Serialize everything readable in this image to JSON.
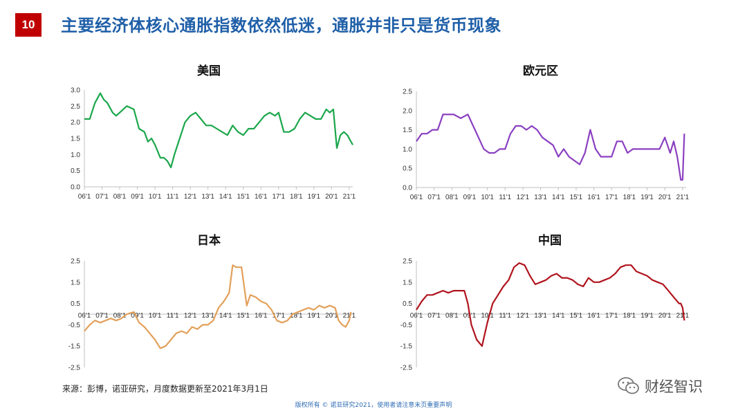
{
  "page": {
    "badge": "10",
    "title": "主要经济体核心通胀指数依然低迷，通胀并非只是货币现象",
    "source": "来源：彭博，诺亚研究，月度数据更新至2021年3月1日",
    "copyright": "版权所有 © 诺亚研究2021，使用者请注意末页重要声明",
    "watermark": "财经智识"
  },
  "colors": {
    "us": "#1aa64a",
    "eu": "#8a3fc0",
    "jp": "#e3a05a",
    "cn": "#b0131d",
    "badge": "#c00000",
    "title": "#1f5fa8"
  },
  "chart_data": [
    {
      "type": "line",
      "title": "美国",
      "ylim": [
        0,
        3.0
      ],
      "yticks": [
        "0.0",
        "0.5",
        "1.0",
        "1.5",
        "2.0",
        "2.5",
        "3.0"
      ],
      "xticks": [
        "06'1",
        "07'1",
        "08'1",
        "09'1",
        "10'1",
        "11'1",
        "12'1",
        "13'1",
        "14'1",
        "15'1",
        "16'1",
        "17'1",
        "18'1",
        "19'1",
        "20'1",
        "21'1"
      ],
      "x_start": 2006.0,
      "x_end": 2021.2,
      "series": [
        {
          "x": [
            2006.0,
            2006.3,
            2006.6,
            2006.9,
            2007.1,
            2007.3,
            2007.6,
            2007.8,
            2008.0,
            2008.4,
            2008.8,
            2009.1,
            2009.4,
            2009.6,
            2009.8,
            2010.0,
            2010.3,
            2010.5,
            2010.7,
            2010.9,
            2011.1,
            2011.4,
            2011.7,
            2012.0,
            2012.3,
            2012.6,
            2012.9,
            2013.2,
            2013.5,
            2013.8,
            2014.1,
            2014.4,
            2014.7,
            2015.0,
            2015.3,
            2015.6,
            2015.9,
            2016.2,
            2016.5,
            2016.8,
            2017.0,
            2017.3,
            2017.6,
            2017.9,
            2018.2,
            2018.5,
            2018.8,
            2019.1,
            2019.4,
            2019.7,
            2019.9,
            2020.1,
            2020.3,
            2020.5,
            2020.7,
            2020.9,
            2021.1,
            2021.2
          ],
          "y": [
            2.1,
            2.1,
            2.6,
            2.9,
            2.7,
            2.6,
            2.3,
            2.2,
            2.3,
            2.5,
            2.4,
            1.8,
            1.7,
            1.4,
            1.5,
            1.3,
            0.9,
            0.9,
            0.8,
            0.6,
            1.0,
            1.5,
            2.0,
            2.2,
            2.3,
            2.1,
            1.9,
            1.9,
            1.8,
            1.7,
            1.6,
            1.9,
            1.7,
            1.6,
            1.8,
            1.8,
            2.0,
            2.2,
            2.3,
            2.2,
            2.3,
            1.7,
            1.7,
            1.8,
            2.1,
            2.3,
            2.2,
            2.1,
            2.1,
            2.4,
            2.3,
            2.4,
            1.2,
            1.6,
            1.7,
            1.6,
            1.4,
            1.3
          ]
        }
      ]
    },
    {
      "type": "line",
      "title": "欧元区",
      "ylim": [
        0,
        2.5
      ],
      "yticks": [
        "0.0",
        "0.5",
        "1.0",
        "1.5",
        "2.0",
        "2.5"
      ],
      "xticks": [
        "06'1",
        "07'1",
        "08'1",
        "09'1",
        "10'1",
        "11'1",
        "12'1",
        "13'1",
        "14'1",
        "15'1",
        "16'1",
        "17'1",
        "18'1",
        "19'1",
        "20'1",
        "21'1"
      ],
      "x_start": 2006.0,
      "x_end": 2021.2,
      "series": [
        {
          "x": [
            2006.0,
            2006.3,
            2006.6,
            2006.9,
            2007.2,
            2007.5,
            2007.8,
            2008.1,
            2008.5,
            2008.9,
            2009.2,
            2009.5,
            2009.8,
            2010.1,
            2010.4,
            2010.7,
            2011.0,
            2011.3,
            2011.6,
            2011.9,
            2012.2,
            2012.5,
            2012.8,
            2013.1,
            2013.4,
            2013.7,
            2014.0,
            2014.3,
            2014.6,
            2014.9,
            2015.2,
            2015.5,
            2015.8,
            2016.1,
            2016.4,
            2016.7,
            2017.0,
            2017.3,
            2017.6,
            2017.9,
            2018.2,
            2018.5,
            2018.8,
            2019.1,
            2019.4,
            2019.7,
            2020.0,
            2020.3,
            2020.5,
            2020.7,
            2020.9,
            2021.0,
            2021.1
          ],
          "y": [
            1.2,
            1.4,
            1.4,
            1.5,
            1.5,
            1.9,
            1.9,
            1.9,
            1.8,
            1.9,
            1.6,
            1.3,
            1.0,
            0.9,
            0.9,
            1.0,
            1.0,
            1.4,
            1.6,
            1.6,
            1.5,
            1.6,
            1.5,
            1.3,
            1.2,
            1.1,
            0.8,
            1.0,
            0.8,
            0.7,
            0.6,
            0.9,
            1.5,
            1.0,
            0.8,
            0.8,
            0.8,
            1.2,
            1.2,
            0.9,
            1.0,
            1.0,
            1.0,
            1.0,
            1.0,
            1.0,
            1.3,
            0.9,
            1.2,
            0.8,
            0.2,
            0.2,
            1.4
          ]
        }
      ]
    },
    {
      "type": "line",
      "title": "日本",
      "ylim": [
        -2.5,
        2.5
      ],
      "yticks": [
        "-2.5",
        "-1.5",
        "-0.5",
        "0.5",
        "1.5",
        "2.5"
      ],
      "xticks": [
        "06'1",
        "07'1",
        "08'1",
        "09'1",
        "10'1",
        "11'1",
        "12'1",
        "13'1",
        "14'1",
        "15'1",
        "16'1",
        "17'1",
        "18'1",
        "19'1",
        "20'1",
        "21'1"
      ],
      "x_start": 2006.0,
      "x_end": 2021.2,
      "series": [
        {
          "x": [
            2006.0,
            2006.3,
            2006.6,
            2006.9,
            2007.2,
            2007.5,
            2007.8,
            2008.1,
            2008.4,
            2008.8,
            2009.1,
            2009.4,
            2009.7,
            2010.0,
            2010.3,
            2010.6,
            2010.9,
            2011.2,
            2011.5,
            2011.8,
            2012.1,
            2012.4,
            2012.7,
            2013.0,
            2013.3,
            2013.6,
            2013.9,
            2014.2,
            2014.4,
            2014.6,
            2014.9,
            2015.2,
            2015.4,
            2015.7,
            2016.0,
            2016.3,
            2016.6,
            2016.9,
            2017.2,
            2017.5,
            2017.8,
            2018.1,
            2018.4,
            2018.7,
            2019.0,
            2019.3,
            2019.6,
            2019.9,
            2020.2,
            2020.4,
            2020.6,
            2020.8,
            2021.0,
            2021.1
          ],
          "y": [
            -0.8,
            -0.5,
            -0.3,
            -0.4,
            -0.3,
            -0.2,
            -0.3,
            -0.2,
            0.0,
            0.1,
            -0.4,
            -0.6,
            -0.9,
            -1.2,
            -1.6,
            -1.5,
            -1.2,
            -0.9,
            -0.8,
            -0.9,
            -0.6,
            -0.7,
            -0.5,
            -0.5,
            -0.3,
            0.3,
            0.6,
            1.0,
            2.3,
            2.2,
            2.2,
            0.4,
            0.9,
            0.8,
            0.6,
            0.5,
            0.2,
            -0.3,
            -0.4,
            -0.3,
            0.0,
            0.1,
            0.2,
            0.3,
            0.2,
            0.4,
            0.3,
            0.4,
            0.3,
            -0.3,
            -0.5,
            -0.6,
            -0.3,
            0.1
          ]
        }
      ]
    },
    {
      "type": "line",
      "title": "中国",
      "ylim": [
        -2.5,
        2.5
      ],
      "yticks": [
        "-2.5",
        "-1.5",
        "-0.5",
        "0.5",
        "1.5",
        "2.5"
      ],
      "xticks": [
        "06'1",
        "07'1",
        "08'1",
        "09'1",
        "10'1",
        "11'1",
        "12'1",
        "13'1",
        "14'1",
        "15'1",
        "16'1",
        "17'1",
        "18'1",
        "19'1",
        "20'1",
        "21'1"
      ],
      "x_start": 2006.0,
      "x_end": 2021.2,
      "series": [
        {
          "x": [
            2006.0,
            2006.3,
            2006.6,
            2006.9,
            2007.2,
            2007.5,
            2007.8,
            2008.1,
            2008.4,
            2008.7,
            2008.9,
            2009.1,
            2009.4,
            2009.7,
            2010.0,
            2010.3,
            2010.6,
            2010.9,
            2011.2,
            2011.5,
            2011.8,
            2012.1,
            2012.4,
            2012.7,
            2013.0,
            2013.3,
            2013.6,
            2013.9,
            2014.2,
            2014.5,
            2014.8,
            2015.1,
            2015.4,
            2015.7,
            2016.0,
            2016.3,
            2016.6,
            2016.9,
            2017.2,
            2017.5,
            2017.8,
            2018.1,
            2018.4,
            2018.7,
            2019.0,
            2019.3,
            2019.6,
            2019.9,
            2020.2,
            2020.5,
            2020.8,
            2020.9,
            2021.0,
            2021.1
          ],
          "y": [
            0.2,
            0.6,
            0.9,
            0.9,
            1.0,
            1.1,
            1.0,
            1.1,
            1.1,
            1.1,
            0.5,
            -0.5,
            -1.2,
            -1.5,
            -0.4,
            0.5,
            0.9,
            1.3,
            1.6,
            2.2,
            2.4,
            2.3,
            1.8,
            1.4,
            1.5,
            1.6,
            1.8,
            1.9,
            1.7,
            1.7,
            1.6,
            1.4,
            1.3,
            1.7,
            1.5,
            1.5,
            1.6,
            1.7,
            1.9,
            2.2,
            2.3,
            2.3,
            2.0,
            1.9,
            1.8,
            1.6,
            1.5,
            1.4,
            1.1,
            0.8,
            0.5,
            0.5,
            0.3,
            -0.3
          ]
        }
      ]
    }
  ]
}
